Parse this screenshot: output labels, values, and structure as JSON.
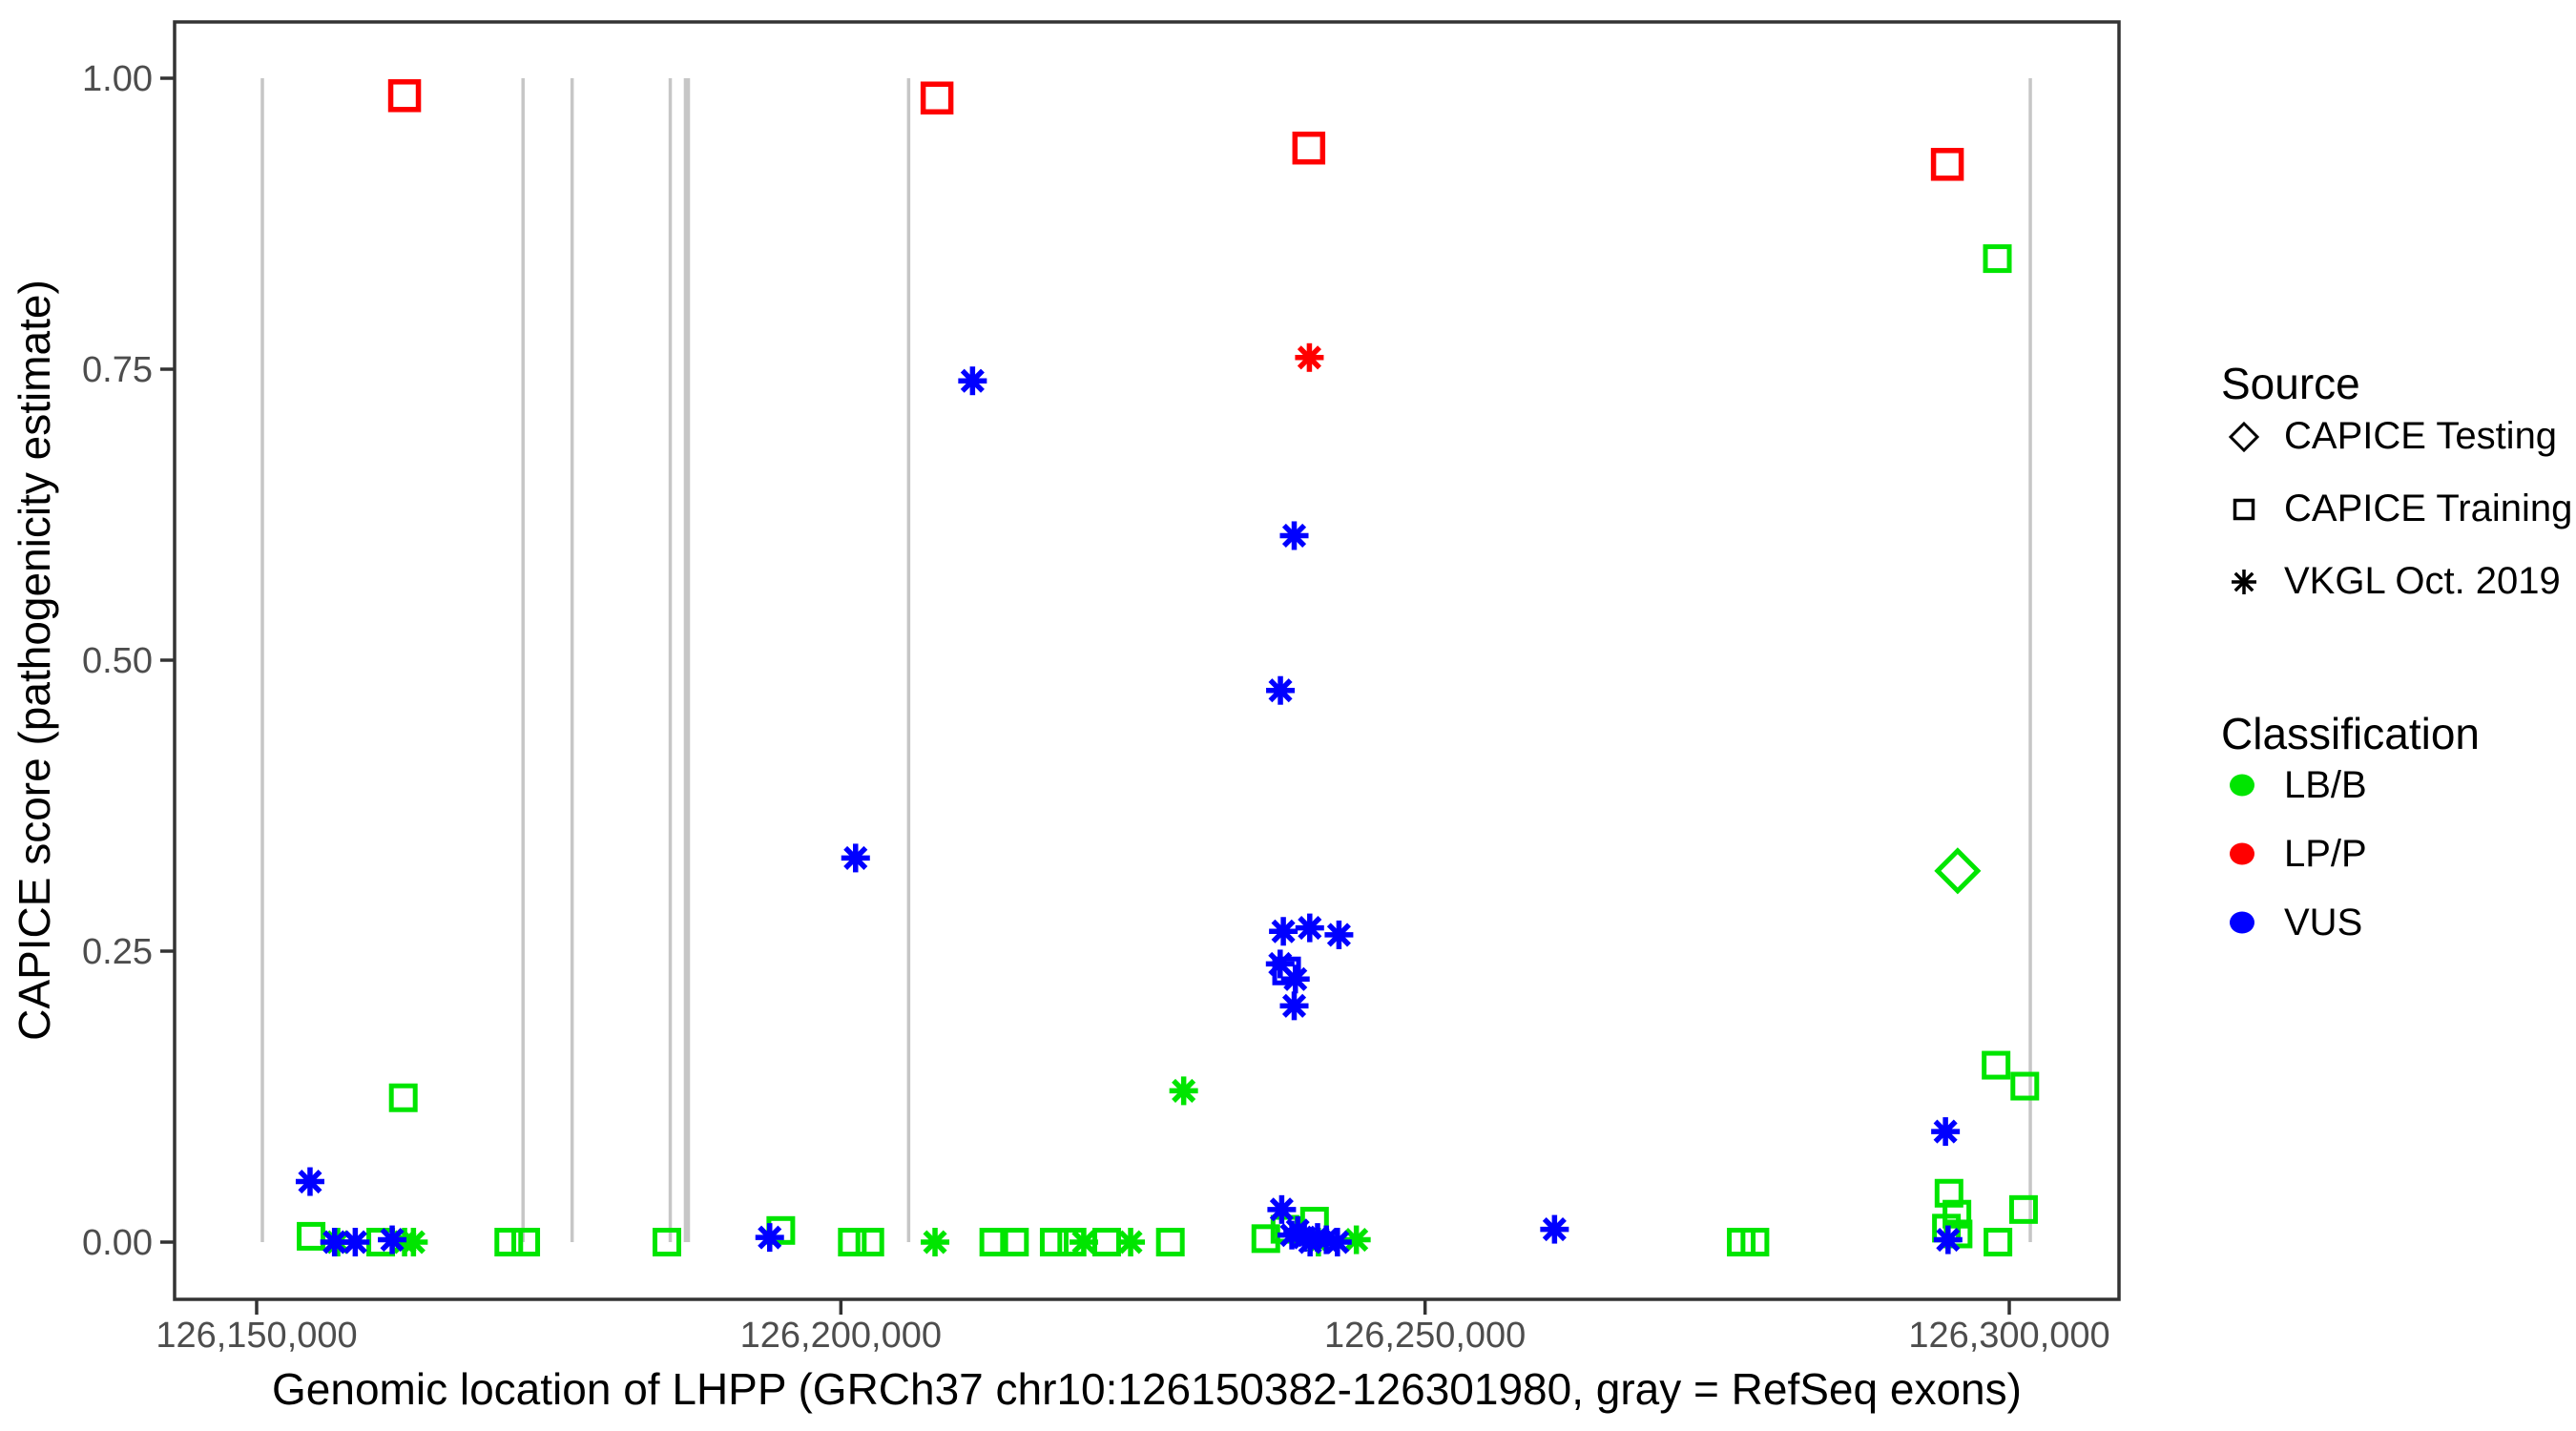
{
  "chart_data": {
    "type": "scatter",
    "title": "",
    "xlabel": "Genomic location of LHPP (GRCh37 chr10:126150382-126301980, gray = RefSeq exons)",
    "ylabel": "CAPICE score (pathogenicity estimate)",
    "x_ticks": [
      {
        "value": 126150000,
        "label": "126,150,000"
      },
      {
        "value": 126200000,
        "label": "126,200,000"
      },
      {
        "value": 126250000,
        "label": "126,250,000"
      },
      {
        "value": 126300000,
        "label": "126,300,000"
      }
    ],
    "y_ticks": [
      {
        "value": 0.0,
        "label": "0.00"
      },
      {
        "value": 0.25,
        "label": "0.25"
      },
      {
        "value": 0.5,
        "label": "0.50"
      },
      {
        "value": 0.75,
        "label": "0.75"
      },
      {
        "value": 1.0,
        "label": "1.00"
      }
    ],
    "xlim": [
      126142980,
      126309400
    ],
    "ylim": [
      -0.05,
      1.05
    ],
    "grid": false,
    "legend_position": "right",
    "exon_gray_lines_x": [
      126150490,
      126172800,
      126177000,
      126185400,
      126186700,
      126186950,
      126205800,
      126301800
    ],
    "exon_line_y_span": [
      0.0,
      1.0
    ],
    "colors": {
      "LB/B": "#00E500",
      "LP/P": "#FF0000",
      "VUS": "#0000FF",
      "exon_gray": "#C6C6C6"
    },
    "shapes": {
      "CAPICE Testing": "diamond",
      "CAPICE Training": "square",
      "VKGL Oct. 2019": "asterisk"
    },
    "legend": {
      "source": {
        "title": "Source",
        "items": [
          {
            "label": "CAPICE Testing",
            "shape": "diamond"
          },
          {
            "label": "CAPICE Training",
            "shape": "square"
          },
          {
            "label": "VKGL Oct. 2019",
            "shape": "asterisk"
          }
        ]
      },
      "classification": {
        "title": "Classification",
        "items": [
          {
            "label": "LB/B",
            "color": "#00E500"
          },
          {
            "label": "LP/P",
            "color": "#FF0000"
          },
          {
            "label": "VUS",
            "color": "#0000FF"
          }
        ]
      }
    },
    "series": [
      {
        "classification": "LB/B",
        "source": "CAPICE Training",
        "points": [
          [
            126162550,
            0.124
          ],
          [
            126154660,
            0.005
          ],
          [
            126160620,
            0.0
          ],
          [
            126171580,
            0.0
          ],
          [
            126173030,
            0.0
          ],
          [
            126185110,
            0.0
          ],
          [
            126194860,
            0.01
          ],
          [
            126200980,
            0.0
          ],
          [
            126202480,
            0.0
          ],
          [
            126213090,
            0.0
          ],
          [
            126214860,
            0.0
          ],
          [
            126218260,
            0.0
          ],
          [
            126219760,
            0.0
          ],
          [
            126222750,
            0.0
          ],
          [
            126228200,
            0.0
          ],
          [
            126236370,
            0.003
          ],
          [
            126238010,
            0.011
          ],
          [
            126240540,
            0.018
          ],
          [
            126277060,
            0.0
          ],
          [
            126278230,
            0.0
          ],
          [
            126298980,
            0.845
          ],
          [
            126298870,
            0.152
          ],
          [
            126301330,
            0.134
          ],
          [
            126294840,
            0.042
          ],
          [
            126295520,
            0.024
          ],
          [
            126294620,
            0.012
          ],
          [
            126295620,
            0.007
          ],
          [
            126299030,
            0.0
          ],
          [
            126301220,
            0.028
          ]
        ]
      },
      {
        "classification": "LB/B",
        "source": "VKGL Oct. 2019",
        "points": [
          [
            126156940,
            0.0
          ],
          [
            126162660,
            0.0
          ],
          [
            126163420,
            0.0
          ],
          [
            126208060,
            0.0
          ],
          [
            126220790,
            0.0
          ],
          [
            126224800,
            0.0
          ],
          [
            126229340,
            0.13
          ],
          [
            126240870,
            0.0
          ],
          [
            126244120,
            0.002
          ]
        ]
      },
      {
        "classification": "VUS",
        "source": "VKGL Oct. 2019",
        "points": [
          [
            126211270,
            0.74
          ],
          [
            126238800,
            0.607
          ],
          [
            126237620,
            0.474
          ],
          [
            126201260,
            0.33
          ],
          [
            126237870,
            0.267
          ],
          [
            126240130,
            0.27
          ],
          [
            126242630,
            0.264
          ],
          [
            126237600,
            0.239
          ],
          [
            126238900,
            0.226
          ],
          [
            126238800,
            0.203
          ],
          [
            126154570,
            0.052
          ],
          [
            126156670,
            0.0
          ],
          [
            126158440,
            0.0
          ],
          [
            126161600,
            0.002
          ],
          [
            126193910,
            0.004
          ],
          [
            126237730,
            0.028
          ],
          [
            126238600,
            0.006
          ],
          [
            126239100,
            0.01
          ],
          [
            126239670,
            0.004
          ],
          [
            126240160,
            0.0
          ],
          [
            126240800,
            0.004
          ],
          [
            126241550,
            0.002
          ],
          [
            126242500,
            0.0
          ],
          [
            126261080,
            0.011
          ],
          [
            126294540,
            0.095
          ],
          [
            126294760,
            0.002
          ]
        ]
      },
      {
        "classification": "VUS",
        "source": "CAPICE Training",
        "points": [
          [
            126238150,
            0.233
          ]
        ]
      },
      {
        "classification": "LP/P",
        "source": "CAPICE Training",
        "points": [
          [
            126162660,
            0.985
          ],
          [
            126208230,
            0.983
          ],
          [
            126240050,
            0.94
          ],
          [
            126294700,
            0.926
          ]
        ]
      },
      {
        "classification": "LP/P",
        "source": "VKGL Oct. 2019",
        "points": [
          [
            126240100,
            0.76
          ]
        ]
      },
      {
        "classification": "LB/B",
        "source": "CAPICE Testing",
        "points": [
          [
            126295580,
            0.319
          ]
        ]
      }
    ]
  }
}
